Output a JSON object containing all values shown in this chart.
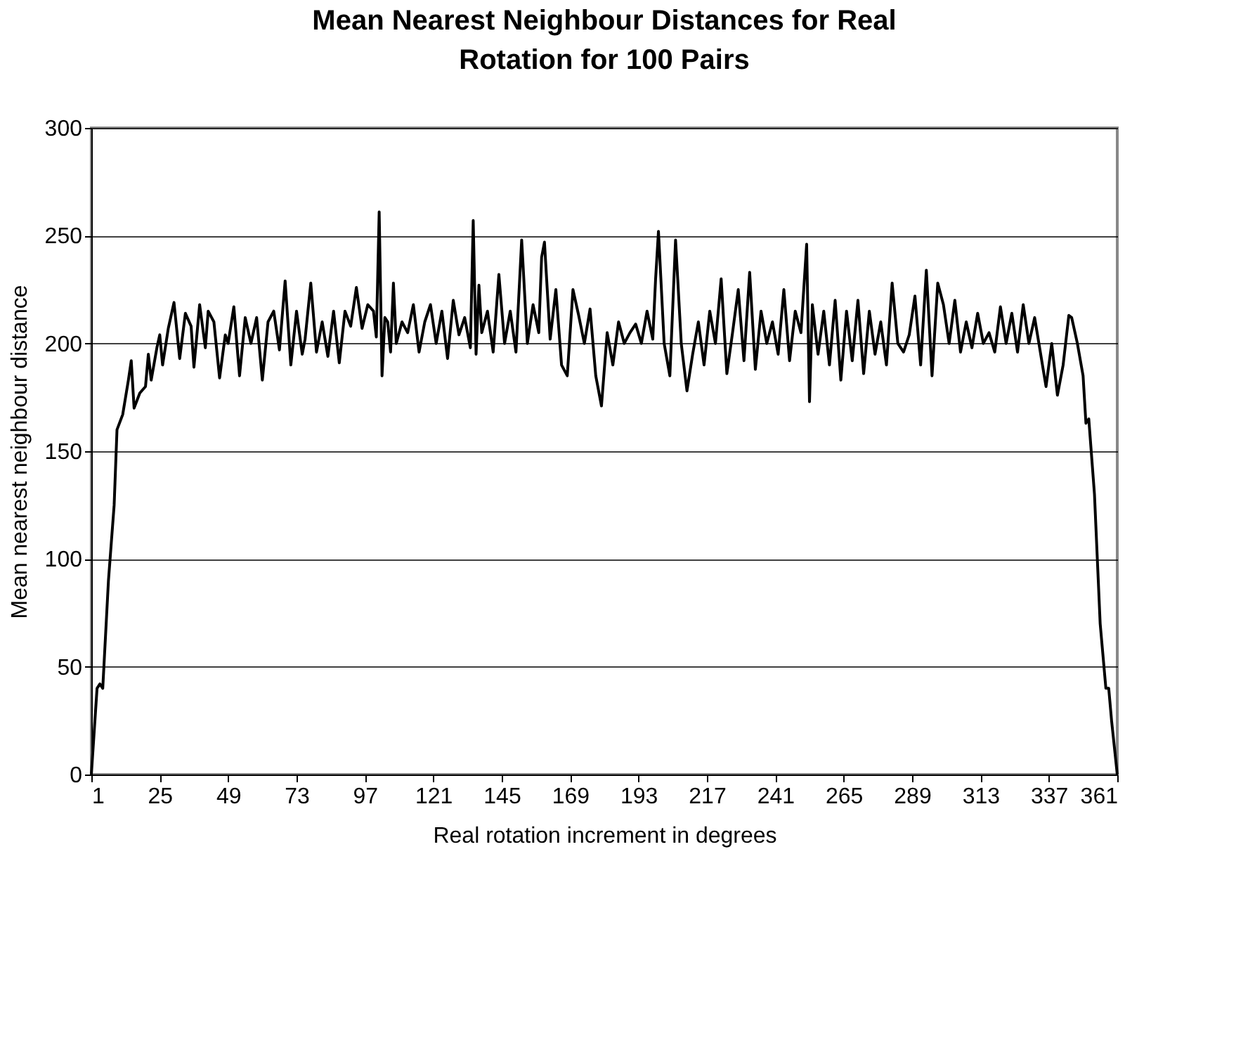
{
  "chart_data": {
    "type": "line",
    "title": "Mean Nearest Neighbour Distances for Real Rotation for 100 Pairs",
    "xlabel": "Real rotation increment in degrees",
    "ylabel": "Mean nearest neighbour distance",
    "xlim": [
      1,
      361
    ],
    "xticks": [
      1,
      25,
      49,
      73,
      97,
      121,
      145,
      169,
      193,
      217,
      241,
      265,
      289,
      313,
      337,
      361
    ],
    "ylim": [
      0,
      300
    ],
    "yticks": [
      0,
      50,
      100,
      150,
      200,
      250,
      300
    ],
    "grid": "y",
    "marker": "none",
    "line_style": "solid",
    "series": [
      {
        "color": "#000000",
        "x": [
          1,
          3,
          4,
          5,
          7,
          9,
          10,
          12,
          14,
          15,
          16,
          18,
          20,
          21,
          22,
          24,
          25,
          26,
          28,
          30,
          32,
          34,
          36,
          37,
          39,
          41,
          42,
          44,
          46,
          48,
          49,
          51,
          53,
          55,
          57,
          59,
          61,
          63,
          65,
          67,
          69,
          71,
          73,
          75,
          76,
          78,
          80,
          82,
          84,
          86,
          88,
          90,
          92,
          94,
          96,
          98,
          100,
          101,
          102,
          103,
          104,
          105,
          106,
          107,
          108,
          110,
          112,
          114,
          116,
          118,
          120,
          122,
          124,
          126,
          128,
          130,
          132,
          134,
          135,
          136,
          137,
          138,
          140,
          142,
          144,
          146,
          148,
          150,
          152,
          154,
          156,
          158,
          159,
          160,
          162,
          164,
          166,
          168,
          170,
          172,
          174,
          176,
          178,
          180,
          182,
          184,
          186,
          188,
          190,
          192,
          194,
          196,
          198,
          199,
          200,
          202,
          204,
          206,
          208,
          210,
          212,
          214,
          216,
          218,
          220,
          222,
          224,
          226,
          228,
          230,
          232,
          234,
          236,
          238,
          240,
          242,
          244,
          246,
          248,
          250,
          252,
          253,
          254,
          256,
          258,
          260,
          262,
          264,
          266,
          268,
          270,
          272,
          274,
          276,
          278,
          280,
          282,
          284,
          286,
          288,
          290,
          292,
          294,
          296,
          298,
          300,
          302,
          304,
          306,
          308,
          310,
          312,
          314,
          316,
          318,
          320,
          322,
          324,
          326,
          328,
          330,
          332,
          334,
          336,
          338,
          340,
          342,
          344,
          345,
          347,
          349,
          350,
          351,
          353,
          355,
          357,
          358,
          359,
          361
        ],
        "values": [
          0,
          40,
          42,
          40,
          90,
          125,
          160,
          167,
          183,
          192,
          170,
          177,
          180,
          195,
          183,
          198,
          204,
          190,
          207,
          219,
          193,
          214,
          208,
          189,
          218,
          198,
          215,
          210,
          184,
          204,
          200,
          217,
          185,
          212,
          200,
          212,
          183,
          210,
          215,
          197,
          229,
          190,
          215,
          195,
          202,
          228,
          196,
          210,
          194,
          215,
          191,
          215,
          208,
          226,
          207,
          218,
          215,
          203,
          261,
          185,
          212,
          210,
          196,
          228,
          200,
          210,
          205,
          218,
          196,
          210,
          218,
          200,
          215,
          193,
          220,
          204,
          212,
          198,
          257,
          195,
          227,
          205,
          215,
          196,
          232,
          200,
          215,
          196,
          248,
          200,
          218,
          205,
          240,
          247,
          202,
          225,
          190,
          185,
          225,
          213,
          200,
          216,
          185,
          171,
          205,
          190,
          210,
          200,
          205,
          209,
          200,
          215,
          202,
          230,
          252,
          200,
          185,
          248,
          200,
          178,
          195,
          210,
          190,
          215,
          200,
          230,
          186,
          205,
          225,
          192,
          233,
          188,
          215,
          200,
          210,
          195,
          225,
          192,
          215,
          205,
          246,
          173,
          218,
          195,
          215,
          190,
          220,
          183,
          215,
          192,
          220,
          186,
          215,
          195,
          210,
          190,
          228,
          200,
          196,
          204,
          222,
          190,
          234,
          185,
          228,
          218,
          200,
          220,
          196,
          210,
          198,
          214,
          200,
          205,
          196,
          217,
          200,
          214,
          196,
          218,
          200,
          212,
          196,
          180,
          200,
          176,
          190,
          213,
          212,
          200,
          185,
          163,
          165,
          130,
          70,
          40,
          40,
          25,
          0
        ]
      }
    ]
  }
}
